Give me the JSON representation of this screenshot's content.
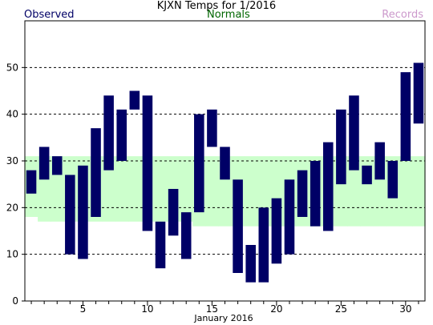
{
  "chart_data": {
    "type": "bar",
    "title": "KJXN Temps for 1/2016",
    "xlabel": "January 2016",
    "ylabel": "",
    "ylim": [
      0,
      60
    ],
    "xlim": [
      0.5,
      31.5
    ],
    "yticks": [
      0,
      10,
      20,
      30,
      40,
      50
    ],
    "xticks": [
      5,
      10,
      15,
      20,
      25,
      30
    ],
    "grid": "horizontal dashed",
    "legend": [
      {
        "name": "Observed",
        "color": "#000066"
      },
      {
        "name": "Normals",
        "color": "#006600"
      },
      {
        "name": "Records",
        "color": "#cc99cc"
      }
    ],
    "normals": {
      "name": "Normals",
      "color": "#ccffcc",
      "days": [
        1,
        2,
        3,
        4,
        5,
        6,
        7,
        8,
        9,
        10,
        11,
        12,
        13,
        14,
        15,
        16,
        17,
        18,
        19,
        20,
        21,
        22,
        23,
        24,
        25,
        26,
        27,
        28,
        29,
        30,
        31
      ],
      "high": [
        31,
        31,
        31,
        31,
        31,
        31,
        31,
        31,
        31,
        31,
        31,
        31,
        31,
        31,
        31,
        31,
        31,
        31,
        31,
        31,
        31,
        31,
        31,
        31,
        31,
        31,
        31,
        31,
        31,
        31,
        31
      ],
      "low": [
        18,
        17,
        17,
        17,
        17,
        17,
        17,
        17,
        17,
        17,
        17,
        17,
        17,
        16,
        16,
        16,
        16,
        16,
        16,
        16,
        16,
        16,
        16,
        16,
        16,
        16,
        16,
        16,
        16,
        16,
        16
      ]
    },
    "series": [
      {
        "name": "Observed",
        "color": "#000066",
        "days": [
          1,
          2,
          3,
          4,
          5,
          6,
          7,
          8,
          9,
          10,
          11,
          12,
          13,
          14,
          15,
          16,
          17,
          18,
          19,
          20,
          21,
          22,
          23,
          24,
          25,
          26,
          27,
          28,
          29,
          30,
          31
        ],
        "high": [
          28,
          33,
          31,
          27,
          29,
          37,
          44,
          41,
          45,
          44,
          17,
          24,
          19,
          40,
          41,
          33,
          26,
          12,
          20,
          22,
          26,
          28,
          30,
          34,
          41,
          44,
          29,
          34,
          30,
          49,
          51
        ],
        "low": [
          23,
          26,
          27,
          10,
          9,
          18,
          28,
          30,
          41,
          15,
          7,
          14,
          9,
          19,
          33,
          26,
          6,
          4,
          4,
          8,
          10,
          18,
          16,
          15,
          25,
          28,
          25,
          26,
          22,
          30,
          38
        ]
      }
    ]
  }
}
